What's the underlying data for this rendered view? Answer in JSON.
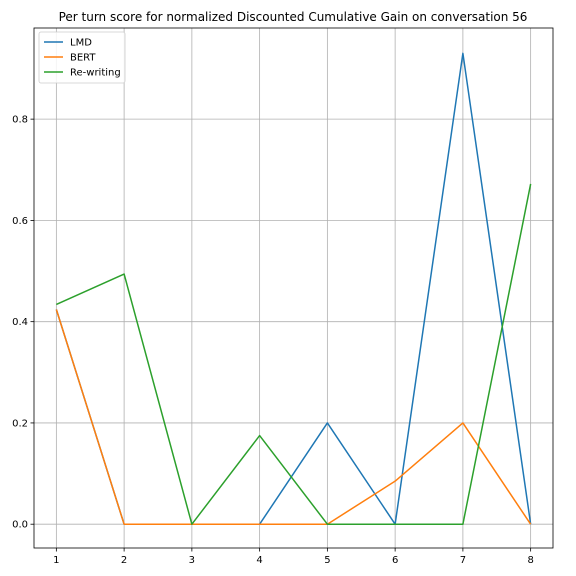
{
  "chart_data": {
    "type": "line",
    "title": "Per turn score for normalized Discounted Cumulative Gain on conversation 56",
    "xlabel": "",
    "ylabel": "",
    "x": [
      1,
      2,
      3,
      4,
      5,
      6,
      7,
      8
    ],
    "xticks": [
      "1",
      "2",
      "3",
      "4",
      "5",
      "6",
      "7",
      "8"
    ],
    "yticks": [
      "0.0",
      "0.2",
      "0.4",
      "0.6",
      "0.8"
    ],
    "xlim": [
      0.67,
      8.33
    ],
    "ylim": [
      -0.047,
      0.98
    ],
    "grid": true,
    "legend_position": "top-left",
    "series": [
      {
        "name": "LMD",
        "color": "#1f77b4",
        "values": [
          0.424,
          0.0,
          0.0,
          0.0,
          0.2,
          0.0,
          0.93,
          0.0
        ]
      },
      {
        "name": "BERT",
        "color": "#ff7f0e",
        "values": [
          0.424,
          0.0,
          0.0,
          0.0,
          0.0,
          0.085,
          0.2,
          0.0
        ]
      },
      {
        "name": "Re-writing",
        "color": "#2ca02c",
        "values": [
          0.434,
          0.494,
          0.0,
          0.175,
          0.0,
          0.0,
          0.0,
          0.672
        ]
      }
    ]
  }
}
